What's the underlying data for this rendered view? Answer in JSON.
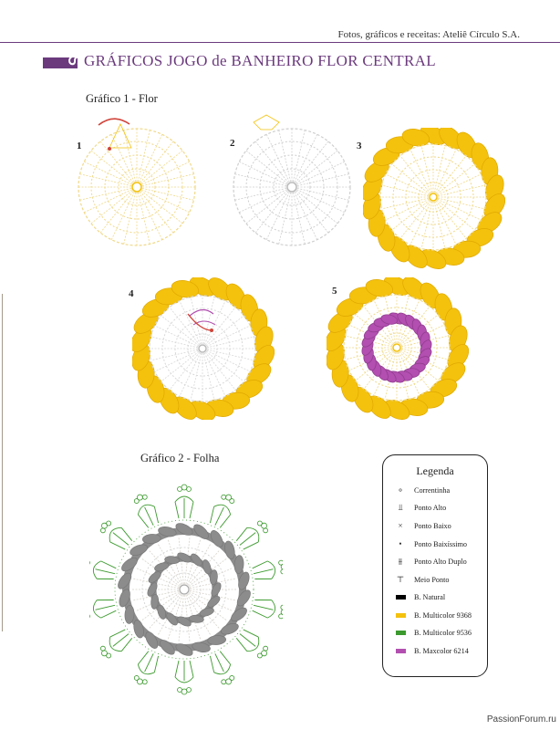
{
  "header": {
    "credit": "Fotos, gráficos e receitas: Ateliê Círculo S.A."
  },
  "title": {
    "text": "GRÁFICOS JOGO de BANHEIRO FLOR CENTRAL",
    "glyph": "ഗ"
  },
  "colors": {
    "accent": "#6b3a7d",
    "natural": "#000000",
    "multicolor_9368": "#f4c20d",
    "multicolor_9536": "#3c9a2e",
    "maxcolor_6214": "#b24fb0",
    "chart_lines": "#d8d4cc",
    "gray_ring": "#8c8c8c"
  },
  "chart1": {
    "title": "Gráfico 1 - Flor",
    "steps": [
      "1",
      "2",
      "3",
      "4",
      "5"
    ]
  },
  "chart2": {
    "title": "Gráfico 2 - Folha"
  },
  "legend": {
    "title": "Legenda",
    "items": [
      {
        "symbol": "chain-icon",
        "label": "Correntinha"
      },
      {
        "symbol": "double-crochet-icon",
        "label": "Ponto Alto"
      },
      {
        "symbol": "single-crochet-icon",
        "label": "Ponto Baixo"
      },
      {
        "symbol": "slip-stitch-icon",
        "label": "Ponto Baixíssimo"
      },
      {
        "symbol": "treble-crochet-icon",
        "label": "Ponto Alto Duplo"
      },
      {
        "symbol": "half-double-crochet-icon",
        "label": "Meio Ponto"
      },
      {
        "symbol": "swatch-natural",
        "label": "B. Natural"
      },
      {
        "symbol": "swatch-9368",
        "label": "B. Multicolor 9368"
      },
      {
        "symbol": "swatch-9536",
        "label": "B. Multicolor 9536"
      },
      {
        "symbol": "swatch-6214",
        "label": "B. Maxcolor 6214"
      }
    ]
  },
  "watermark": "PassionForum.ru"
}
